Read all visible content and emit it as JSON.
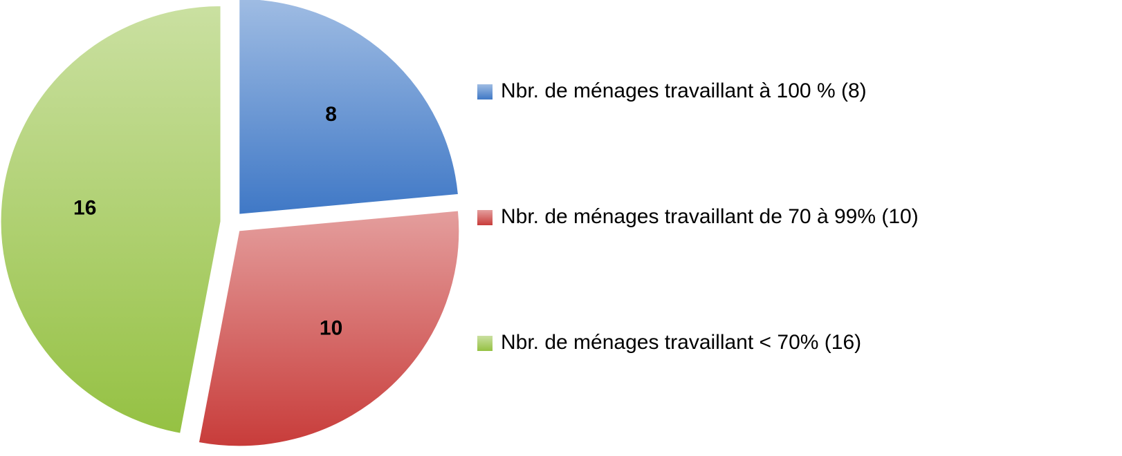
{
  "chart_data": {
    "type": "pie",
    "categories": [
      "Nbr. de ménages travaillant à 100 % (8)",
      "Nbr. de ménages travaillant de 70 à 99% (10)",
      "Nbr. de ménages travaillant < 70% (16)"
    ],
    "values": [
      8,
      10,
      16
    ],
    "colors": [
      "#3f78c6",
      "#c83c3a",
      "#95c143"
    ],
    "legend": "right"
  }
}
